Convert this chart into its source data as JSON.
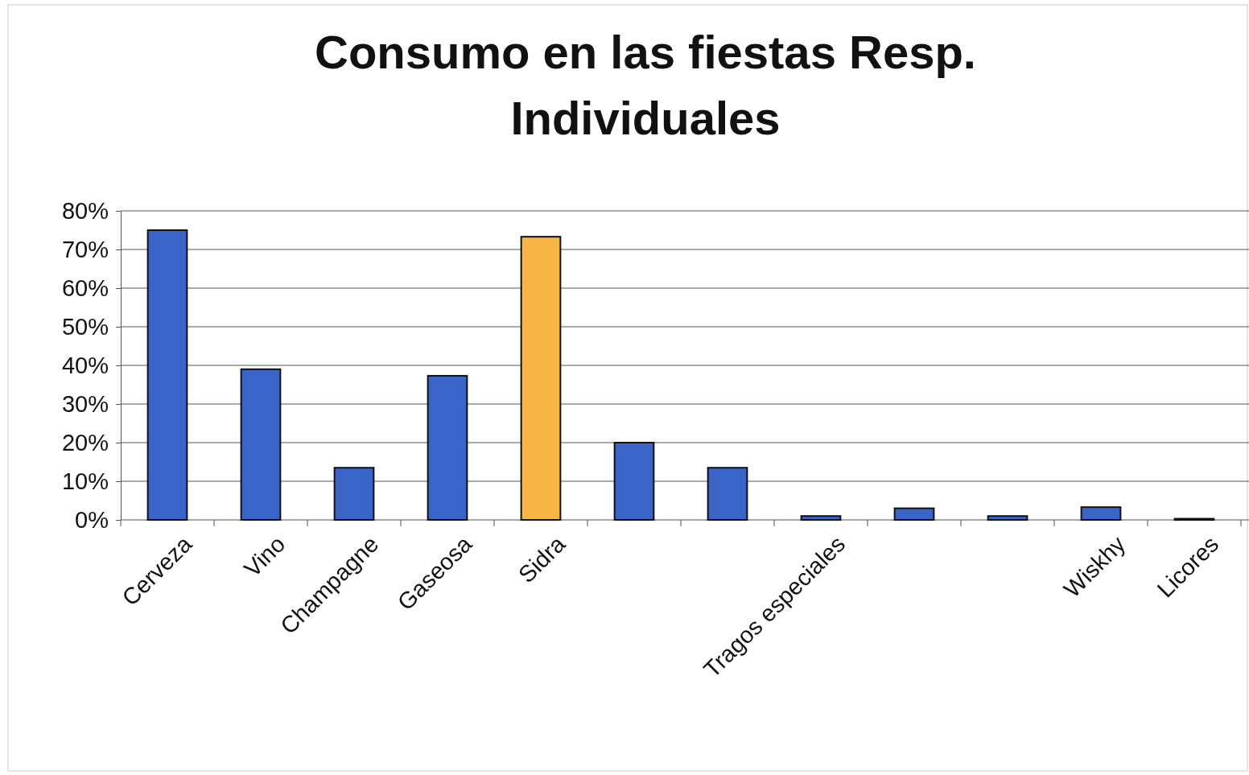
{
  "chart_data": {
    "type": "bar",
    "title": "Consumo en las fiestas Resp. Individuales",
    "categories": [
      "Cerveza",
      "Vino",
      "Champagne",
      "Gaseosa",
      "Sidra",
      null,
      null,
      "Tragos especiales",
      null,
      null,
      "Wiskhy",
      "Licores"
    ],
    "values": [
      75,
      39,
      13.5,
      37.3,
      73.3,
      20,
      13.5,
      1,
      3,
      1,
      3.3,
      0.3
    ],
    "colors": [
      "#3a64c8",
      "#3a64c8",
      "#3a64c8",
      "#3a64c8",
      "#f7b545",
      "#3a64c8",
      "#3a64c8",
      "#3a64c8",
      "#3a64c8",
      "#3a64c8",
      "#3a64c8",
      "#3a64c8"
    ],
    "ylim": [
      0,
      80
    ],
    "yticks": [
      {
        "value": 0,
        "label": "0%"
      },
      {
        "value": 10,
        "label": "10%"
      },
      {
        "value": 20,
        "label": "20%"
      },
      {
        "value": 30,
        "label": "30%"
      },
      {
        "value": 40,
        "label": "40%"
      },
      {
        "value": 50,
        "label": "50%"
      },
      {
        "value": 60,
        "label": "60%"
      },
      {
        "value": 70,
        "label": "70%"
      },
      {
        "value": 80,
        "label": "80%"
      }
    ],
    "grid": "y"
  }
}
